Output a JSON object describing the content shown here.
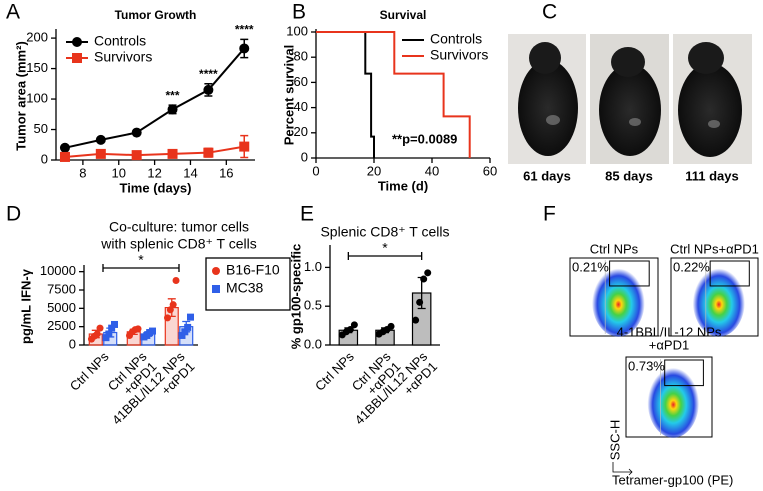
{
  "panel_labels": [
    "A",
    "B",
    "C",
    "D",
    "E",
    "F"
  ],
  "chart_data": [
    {
      "type": "line",
      "title": "Tumor Growth",
      "x_label": "Time (days)",
      "y_label": "Tumor area (mm²)",
      "x": [
        7,
        9,
        11,
        13,
        15,
        17
      ],
      "xlim": [
        6.5,
        17.6
      ],
      "xticks": [
        8,
        10,
        12,
        14,
        16
      ],
      "ylim": [
        0,
        210
      ],
      "yticks": [
        0,
        50,
        100,
        150,
        200
      ],
      "legend": "upper left",
      "series": [
        {
          "name": "Controls",
          "color": "#000000",
          "marker": "circle",
          "values": [
            20,
            33,
            45,
            83,
            115,
            183
          ],
          "errors": [
            3,
            3,
            3,
            7,
            10,
            15
          ]
        },
        {
          "name": "Survivors",
          "color": "#e8341c",
          "marker": "square",
          "values": [
            5,
            10,
            8,
            10,
            12,
            22
          ],
          "errors": [
            3,
            5,
            6,
            6,
            7,
            18
          ]
        }
      ],
      "annotations": [
        {
          "x": 13,
          "text": "***"
        },
        {
          "x": 15,
          "text": "****"
        },
        {
          "x": 17,
          "text": "****"
        }
      ]
    },
    {
      "type": "step",
      "title": "Survival",
      "x_label": "Time (d)",
      "y_label": "Percent survival",
      "xlim": [
        0,
        60
      ],
      "xticks": [
        0,
        20,
        40,
        60
      ],
      "ylim": [
        0,
        100
      ],
      "yticks": [
        0,
        20,
        40,
        60,
        80,
        100
      ],
      "legend": "upper right",
      "annotation": "**p=0.0089",
      "series": [
        {
          "name": "Controls",
          "color": "#000000",
          "x": [
            0,
            17,
            19,
            20
          ],
          "values": [
            100,
            67,
            17,
            0
          ]
        },
        {
          "name": "Survivors",
          "color": "#e8341c",
          "x": [
            0,
            27,
            44,
            53
          ],
          "values": [
            100,
            67,
            33,
            0
          ]
        }
      ]
    },
    {
      "type": "bar",
      "title": [
        "Co-culture: tumor cells",
        "with splenic CD8⁺ T cells"
      ],
      "y_label": "pg/mL IFN-γ",
      "categories": [
        [
          "Ctrl NPs"
        ],
        [
          "Ctrl NPs",
          "+αPD1"
        ],
        [
          "41BBL/IL12 NPs",
          "+αPD1"
        ]
      ],
      "ylim": [
        0,
        10500
      ],
      "yticks": [
        0,
        2500,
        5000,
        7500,
        10000
      ],
      "legend": "right",
      "significance": "*",
      "series": [
        {
          "name": "B16-F10",
          "color": "#e8341c",
          "marker": "circle",
          "values": [
            1500,
            1800,
            5100
          ],
          "errors": [
            500,
            350,
            1200
          ],
          "points": [
            [
              800,
              1200,
              1500,
              2300
            ],
            [
              1300,
              1800,
              2100,
              2200
            ],
            [
              3700,
              4800,
              5500,
              8800
            ]
          ]
        },
        {
          "name": "MC38",
          "color": "#2f5fe8",
          "marker": "square",
          "values": [
            1700,
            1500,
            2500
          ],
          "errors": [
            600,
            300,
            700
          ],
          "points": [
            [
              1000,
              1500,
              2300,
              2800
            ],
            [
              1100,
              1300,
              1700,
              1900
            ],
            [
              1300,
              1800,
              2400,
              3800
            ]
          ]
        }
      ]
    },
    {
      "type": "bar",
      "title": [
        "Splenic CD8⁺ T cells"
      ],
      "y_label": "% gp100-specific",
      "categories": [
        [
          "Ctrl NPs"
        ],
        [
          "Ctrl NPs",
          "+αPD1"
        ],
        [
          "41BBL/IL12 NPs",
          "+αPD1"
        ]
      ],
      "ylim": [
        0,
        1.25
      ],
      "yticks": [
        {
          "value": 0,
          "label": "0.0"
        },
        {
          "value": 0.5,
          "label": "0.5"
        },
        {
          "value": 1,
          "label": "1.0"
        }
      ],
      "significance": "*",
      "series": [
        {
          "color": "#000000",
          "fill": "#bdbdbd",
          "marker": "circle",
          "values": [
            0.19,
            0.19,
            0.67
          ],
          "errors": [
            0.03,
            0.03,
            0.2
          ],
          "points": [
            [
              0.13,
              0.17,
              0.2,
              0.26
            ],
            [
              0.14,
              0.17,
              0.2,
              0.24
            ],
            [
              0.32,
              0.55,
              0.85,
              0.93
            ]
          ]
        }
      ]
    }
  ],
  "photos": {
    "captions": [
      "61 days",
      "85 days",
      "111 days"
    ]
  },
  "flow": {
    "plots": [
      {
        "title": [
          "Ctrl NPs"
        ],
        "gate": "0.21%"
      },
      {
        "title": [
          "Ctrl NPs+αPD1"
        ],
        "gate": "0.22%"
      },
      {
        "title": [
          "4-1BBL/IL-12 NPs",
          "+αPD1"
        ],
        "gate": "0.73%"
      }
    ],
    "y_label": "SSC-H",
    "x_label": "Tetramer-gp100 (PE)"
  }
}
